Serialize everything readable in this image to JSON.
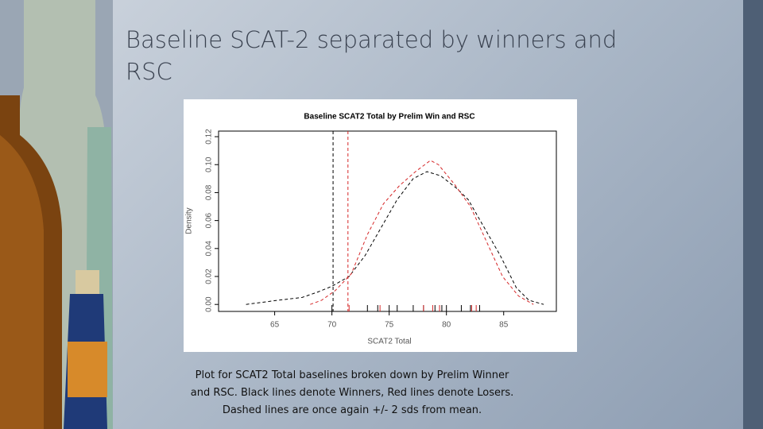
{
  "title": "Baseline SCAT-2 separated by winners and RSC",
  "caption": [
    "Plot for SCAT2 Total baselines broken down by Prelim Winner",
    "and RSC. Black lines denote Winners, Red lines denote Losers.",
    "Dashed lines are once again +/- 2 sds from mean."
  ],
  "chart_data": {
    "type": "line",
    "title": "Baseline SCAT2 Total by Prelim Win and RSC",
    "x_label": "SCAT2 Total",
    "y_label": "Density",
    "xlim": [
      60.1,
      89.6
    ],
    "ylim": [
      -0.005,
      0.124
    ],
    "xticks": [
      65,
      70,
      75,
      80,
      85
    ],
    "yticks": [
      {
        "value": 0,
        "label": "0.00"
      },
      {
        "value": 0.02,
        "label": "0.02"
      },
      {
        "value": 0.04,
        "label": "0.04"
      },
      {
        "value": 0.06,
        "label": "0.06"
      },
      {
        "value": 0.08,
        "label": "0.08"
      },
      {
        "value": 0.1,
        "label": "0.10"
      },
      {
        "value": 0.12,
        "label": "0.12"
      }
    ],
    "series": [
      {
        "color": "#000000",
        "vline": 70.1,
        "x": [
          62.5,
          65.3,
          67.4,
          68.8,
          70.0,
          71.5,
          72.9,
          74.3,
          75.7,
          77.1,
          78.3,
          79.5,
          80.9,
          81.9,
          83.3,
          84.7,
          86.1,
          87.2,
          88.5
        ],
        "values": [
          0.0,
          0.003,
          0.005,
          0.009,
          0.013,
          0.02,
          0.035,
          0.055,
          0.075,
          0.09,
          0.095,
          0.092,
          0.083,
          0.075,
          0.055,
          0.035,
          0.012,
          0.003,
          0.0
        ],
        "rug": [
          70.0,
          73.1,
          74.0,
          75.0,
          75.7,
          77.1,
          78.0,
          79.0,
          79.6,
          80.0,
          81.3,
          82.1,
          82.9
        ]
      },
      {
        "color": "#d62728",
        "vline": 71.4,
        "x": [
          68.1,
          69.1,
          70.3,
          71.7,
          73.1,
          74.5,
          75.9,
          77.3,
          78.6,
          79.3,
          80.7,
          82.1,
          83.5,
          84.9,
          86.3,
          87.6
        ],
        "values": [
          0.0,
          0.003,
          0.01,
          0.022,
          0.05,
          0.072,
          0.085,
          0.095,
          0.103,
          0.1,
          0.086,
          0.07,
          0.045,
          0.02,
          0.006,
          0.0
        ],
        "rug": [
          71.5,
          74.2,
          78.0,
          78.8,
          79.4,
          82.2,
          82.6
        ]
      }
    ]
  }
}
